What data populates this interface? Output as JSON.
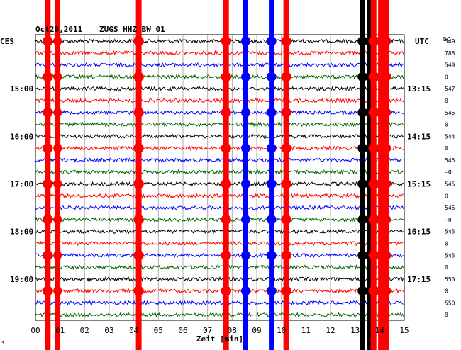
{
  "header": {
    "date": "Oct20,2011",
    "station": "ZUGS HHZ BW 01"
  },
  "left_timezone": "CES",
  "right_timezone": "UTC",
  "dc_label": "DC",
  "x_axis_label": "Zeit [min]",
  "corner_mark": "*",
  "colors": {
    "trace_cycle": [
      "#000000",
      "#ff0000",
      "#0000ff",
      "#006400"
    ],
    "grid": "#b0b0b0",
    "background": "#ffffff"
  },
  "chart_data": {
    "type": "line",
    "title": "Oct20,2011   ZUGS HHZ BW 01",
    "xlabel": "Zeit [min]",
    "x_range": [
      0,
      15
    ],
    "x_tick_labels": [
      "00",
      "01",
      "02",
      "03",
      "04",
      "05",
      "06",
      "07",
      "08",
      "09",
      "10",
      "11",
      "12",
      "13",
      "14",
      "15"
    ],
    "trace_interval_min": 15,
    "trace_count": 24,
    "left_hour_labels": [
      {
        "row": 4,
        "label": "15:00"
      },
      {
        "row": 8,
        "label": "16:00"
      },
      {
        "row": 12,
        "label": "17:00"
      },
      {
        "row": 16,
        "label": "18:00"
      },
      {
        "row": 20,
        "label": "19:00"
      }
    ],
    "right_hour_labels": [
      {
        "row": 4,
        "label": "13:15"
      },
      {
        "row": 8,
        "label": "14:15"
      },
      {
        "row": 12,
        "label": "15:15"
      },
      {
        "row": 16,
        "label": "16:15"
      },
      {
        "row": 20,
        "label": "17:15"
      }
    ],
    "dc_values": [
      "549",
      "788",
      "549",
      "0",
      "547",
      "0",
      "545",
      "0",
      "544",
      "0",
      "545",
      "-0",
      "545",
      "0",
      "545",
      "-0",
      "545",
      "0",
      "545",
      "0",
      "550",
      "0",
      "550",
      "0"
    ],
    "spike_events": [
      {
        "color": "red",
        "x_min": 0.5,
        "y_from_row": 0,
        "y_to_row": 24,
        "strength": 1.0
      },
      {
        "color": "red",
        "x_min": 0.9,
        "y_from_row": 0,
        "y_to_row": 24,
        "strength": 0.7
      },
      {
        "color": "red",
        "x_min": 4.2,
        "y_from_row": 0,
        "y_to_row": 24,
        "strength": 1.0
      },
      {
        "color": "red",
        "x_min": 7.75,
        "y_from_row": 0,
        "y_to_row": 24,
        "strength": 1.0
      },
      {
        "color": "blue",
        "x_min": 8.55,
        "y_from_row": 0,
        "y_to_row": 24,
        "strength": 0.8
      },
      {
        "color": "blue",
        "x_min": 9.6,
        "y_from_row": 0,
        "y_to_row": 24,
        "strength": 0.9
      },
      {
        "color": "red",
        "x_min": 10.2,
        "y_from_row": 0,
        "y_to_row": 24,
        "strength": 1.0
      },
      {
        "color": "black",
        "x_min": 13.3,
        "y_from_row": 0,
        "y_to_row": 24,
        "strength": 0.9
      },
      {
        "color": "black",
        "x_min": 13.6,
        "y_from_row": 0,
        "y_to_row": 24,
        "strength": 0.9
      },
      {
        "color": "red",
        "x_min": 13.75,
        "y_from_row": 0,
        "y_to_row": 24,
        "strength": 1.0
      },
      {
        "color": "red",
        "x_min": 14.05,
        "y_from_row": 0,
        "y_to_row": 24,
        "strength": 1.0
      },
      {
        "color": "red",
        "x_min": 14.25,
        "y_from_row": 0,
        "y_to_row": 24,
        "strength": 1.0
      }
    ]
  }
}
